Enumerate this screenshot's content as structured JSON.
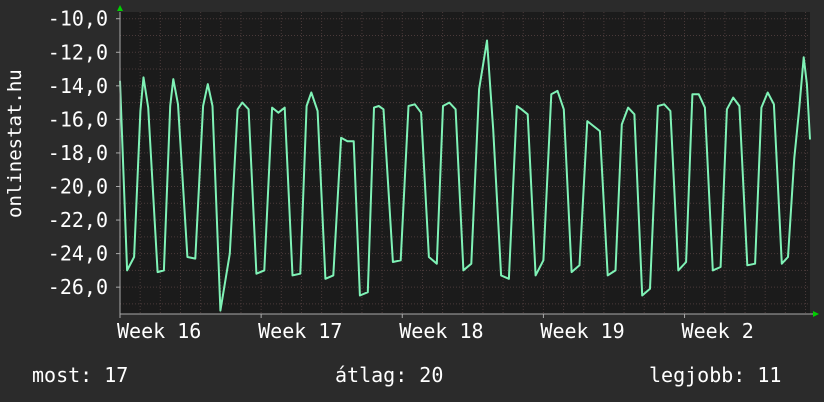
{
  "chart_data": {
    "type": "line",
    "ylabel": "onlinestat.hu",
    "ylim": [
      -27.6,
      -9.6
    ],
    "yticks": [
      "-10,0",
      "-12,0",
      "-14,0",
      "-16,0",
      "-18,0",
      "-20,0",
      "-22,0",
      "-24,0",
      "-26,0"
    ],
    "ytick_values": [
      -10,
      -12,
      -14,
      -16,
      -18,
      -20,
      -22,
      -24,
      -26
    ],
    "xlim": [
      0,
      44
    ],
    "xticks": [
      "Week 16",
      "Week 17",
      "Week 18",
      "Week 19",
      "Week 2"
    ],
    "xtick_values": [
      0,
      9,
      18,
      27,
      36
    ],
    "grid": true,
    "colors": {
      "background": "#2b2b2b",
      "plot_background": "#1b1b1b",
      "grid": "#4a3a3a",
      "axis": "#aaaaaa",
      "line": "#7ff2b6",
      "arrow": "#00d000"
    },
    "series": [
      {
        "values": [
          [
            0.0,
            -13.7
          ],
          [
            0.45,
            -25.0
          ],
          [
            0.9,
            -24.2
          ],
          [
            1.3,
            -15.5
          ],
          [
            1.5,
            -13.5
          ],
          [
            1.8,
            -15.3
          ],
          [
            2.4,
            -25.1
          ],
          [
            2.8,
            -25.0
          ],
          [
            3.2,
            -15.2
          ],
          [
            3.4,
            -13.6
          ],
          [
            3.7,
            -15.1
          ],
          [
            4.3,
            -24.2
          ],
          [
            4.8,
            -24.3
          ],
          [
            5.3,
            -15.2
          ],
          [
            5.6,
            -13.9
          ],
          [
            5.9,
            -15.2
          ],
          [
            6.4,
            -27.4
          ],
          [
            7.0,
            -24.0
          ],
          [
            7.5,
            -15.4
          ],
          [
            7.8,
            -15.0
          ],
          [
            8.2,
            -15.4
          ],
          [
            8.7,
            -25.2
          ],
          [
            9.2,
            -25.0
          ],
          [
            9.7,
            -15.3
          ],
          [
            10.1,
            -15.6
          ],
          [
            10.5,
            -15.3
          ],
          [
            11.0,
            -25.3
          ],
          [
            11.5,
            -25.2
          ],
          [
            11.9,
            -15.2
          ],
          [
            12.2,
            -14.4
          ],
          [
            12.6,
            -15.5
          ],
          [
            13.1,
            -25.5
          ],
          [
            13.6,
            -25.3
          ],
          [
            14.1,
            -17.1
          ],
          [
            14.5,
            -17.3
          ],
          [
            14.9,
            -17.3
          ],
          [
            15.3,
            -26.5
          ],
          [
            15.8,
            -26.3
          ],
          [
            16.2,
            -15.3
          ],
          [
            16.5,
            -15.2
          ],
          [
            16.8,
            -15.4
          ],
          [
            17.4,
            -24.5
          ],
          [
            17.9,
            -24.4
          ],
          [
            18.4,
            -15.2
          ],
          [
            18.8,
            -15.1
          ],
          [
            19.2,
            -15.6
          ],
          [
            19.7,
            -24.2
          ],
          [
            20.2,
            -24.6
          ],
          [
            20.6,
            -15.2
          ],
          [
            21.0,
            -15.0
          ],
          [
            21.4,
            -15.4
          ],
          [
            21.9,
            -25.0
          ],
          [
            22.4,
            -24.6
          ],
          [
            22.9,
            -14.2
          ],
          [
            23.4,
            -11.3
          ],
          [
            23.8,
            -16.6
          ],
          [
            24.3,
            -25.3
          ],
          [
            24.8,
            -25.5
          ],
          [
            25.3,
            -15.2
          ],
          [
            25.6,
            -15.4
          ],
          [
            26.0,
            -15.7
          ],
          [
            26.5,
            -25.3
          ],
          [
            27.0,
            -24.4
          ],
          [
            27.5,
            -14.5
          ],
          [
            27.9,
            -14.3
          ],
          [
            28.3,
            -15.4
          ],
          [
            28.8,
            -25.1
          ],
          [
            29.3,
            -24.7
          ],
          [
            29.8,
            -16.1
          ],
          [
            30.2,
            -16.4
          ],
          [
            30.6,
            -16.7
          ],
          [
            31.1,
            -25.3
          ],
          [
            31.6,
            -25.0
          ],
          [
            32.0,
            -16.3
          ],
          [
            32.4,
            -15.3
          ],
          [
            32.8,
            -15.7
          ],
          [
            33.3,
            -26.5
          ],
          [
            33.8,
            -26.1
          ],
          [
            34.3,
            -15.2
          ],
          [
            34.7,
            -15.1
          ],
          [
            35.1,
            -15.5
          ],
          [
            35.6,
            -25.0
          ],
          [
            36.1,
            -24.5
          ],
          [
            36.5,
            -14.5
          ],
          [
            36.9,
            -14.5
          ],
          [
            37.3,
            -15.3
          ],
          [
            37.8,
            -25.0
          ],
          [
            38.3,
            -24.8
          ],
          [
            38.7,
            -15.4
          ],
          [
            39.1,
            -14.7
          ],
          [
            39.5,
            -15.2
          ],
          [
            40.0,
            -24.7
          ],
          [
            40.5,
            -24.6
          ],
          [
            40.9,
            -15.3
          ],
          [
            41.3,
            -14.4
          ],
          [
            41.7,
            -15.1
          ],
          [
            42.2,
            -24.6
          ],
          [
            42.6,
            -24.2
          ],
          [
            43.0,
            -18.3
          ],
          [
            43.3,
            -15.5
          ],
          [
            43.6,
            -12.3
          ],
          [
            43.8,
            -13.9
          ],
          [
            44.0,
            -17.2
          ]
        ]
      }
    ]
  },
  "stats": {
    "current": "most: 17",
    "average": "átlag: 20",
    "best": "legjobb: 11"
  }
}
